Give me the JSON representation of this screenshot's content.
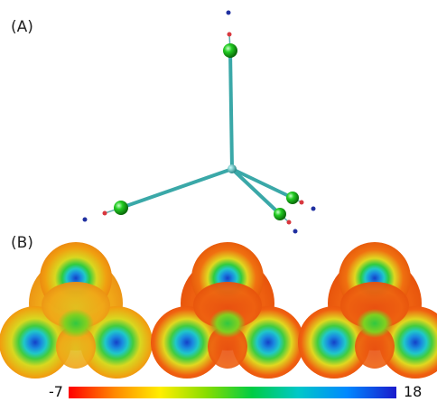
{
  "panels": {
    "a_label": "(A)",
    "b_label": "(B)"
  },
  "colorbar": {
    "min": "-7",
    "max": "18",
    "colors": [
      "#ff0000",
      "#ff8800",
      "#ffee00",
      "#88dd00",
      "#00cc44",
      "#00c8c8",
      "#0088ff",
      "#1a1acc"
    ]
  },
  "molecule_colors": {
    "bond": "#3aa8a8",
    "atom": "#22cc22",
    "dot_red": "#d8383f",
    "dot_blue": "#2030a0"
  }
}
